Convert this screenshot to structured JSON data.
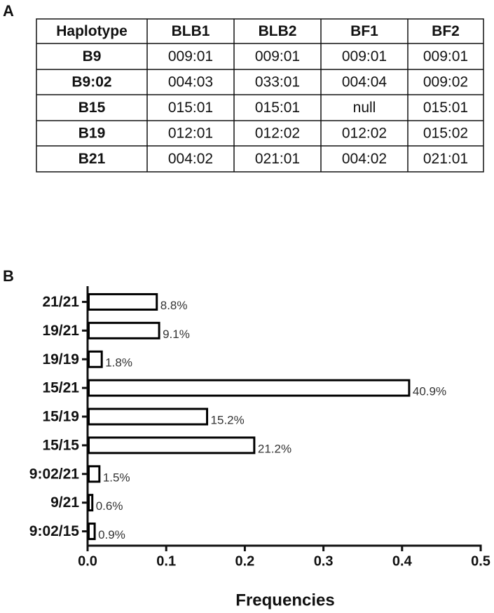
{
  "panels": [
    "A",
    "B"
  ],
  "table": {
    "header": [
      "Haplotype",
      "BLB1",
      "BLB2",
      "BF1",
      "BF2"
    ],
    "rows": [
      [
        "B9",
        "009:01",
        "009:01",
        "009:01",
        "009:01"
      ],
      [
        "B9:02",
        "004:03",
        "033:01",
        "004:04",
        "009:02"
      ],
      [
        "B15",
        "015:01",
        "015:01",
        "null",
        "015:01"
      ],
      [
        "B19",
        "012:01",
        "012:02",
        "012:02",
        "015:02"
      ],
      [
        "B21",
        "004:02",
        "021:01",
        "004:02",
        "021:01"
      ]
    ]
  },
  "chart_data": {
    "type": "barh",
    "xlabel": "Frequencies",
    "categories": [
      "21/21",
      "19/21",
      "19/19",
      "15/21",
      "15/19",
      "15/15",
      "9:02/21",
      "9/21",
      "9:02/15"
    ],
    "values": [
      0.088,
      0.091,
      0.018,
      0.409,
      0.152,
      0.212,
      0.015,
      0.006,
      0.009
    ],
    "value_labels": [
      "8.8%",
      "9.1%",
      "1.8%",
      "40.9%",
      "15.2%",
      "21.2%",
      "1.5%",
      "0.6%",
      "0.9%"
    ],
    "color": "#ffffff",
    "edgecolor": "#000000",
    "xlim": [
      0,
      0.5
    ],
    "xticks": [
      {
        "value": 0,
        "label": "0.0"
      },
      0.1,
      0.2,
      0.3,
      0.4,
      0.5
    ]
  }
}
